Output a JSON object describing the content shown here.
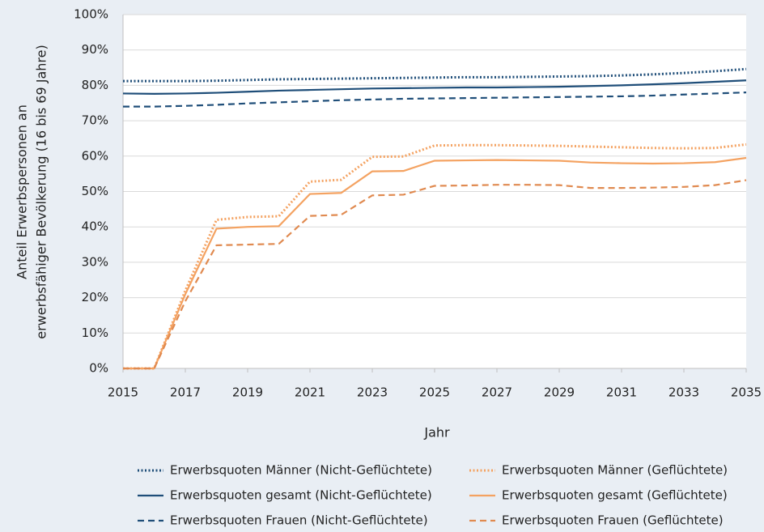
{
  "chart_data": {
    "type": "line",
    "x_label": "Jahr",
    "y_label": [
      "Anteil Erwerbspersonen an",
      "erwerbsfähiger Bevölkerung (16 bis 69 Jahre)"
    ],
    "x": [
      2015,
      2016,
      2017,
      2018,
      2019,
      2020,
      2021,
      2022,
      2023,
      2024,
      2025,
      2026,
      2027,
      2028,
      2029,
      2030,
      2031,
      2032,
      2033,
      2034,
      2035
    ],
    "xlim": [
      2015,
      2035
    ],
    "xticks": [
      2015,
      2017,
      2019,
      2021,
      2023,
      2025,
      2027,
      2029,
      2031,
      2033,
      2035
    ],
    "ylim": [
      0,
      100
    ],
    "yticks": [
      {
        "value": 0,
        "label": "0%"
      },
      {
        "value": 10,
        "label": "10%"
      },
      {
        "value": 20,
        "label": "20%"
      },
      {
        "value": 30,
        "label": "30%"
      },
      {
        "value": 40,
        "label": "40%"
      },
      {
        "value": 50,
        "label": "50%"
      },
      {
        "value": 60,
        "label": "60%"
      },
      {
        "value": 70,
        "label": "70%"
      },
      {
        "value": 80,
        "label": "80%"
      },
      {
        "value": 90,
        "label": "90%"
      },
      {
        "value": 100,
        "label": "100%"
      }
    ],
    "grid": true,
    "series": [
      {
        "name": "Erwerbsquoten Männer (Nicht-Geflüchtete)",
        "color": "#1f4e79",
        "dash": "dotted",
        "values": [
          81.2,
          81.2,
          81.2,
          81.3,
          81.5,
          81.7,
          81.8,
          81.9,
          82.0,
          82.1,
          82.2,
          82.3,
          82.3,
          82.4,
          82.5,
          82.6,
          82.8,
          83.1,
          83.5,
          84.0,
          84.6
        ]
      },
      {
        "name": "Erwerbsquoten Männer (Geflüchtete)",
        "color": "#f4a261",
        "dash": "dotted",
        "values": [
          0,
          0,
          22,
          42,
          42.8,
          43,
          52.8,
          53.3,
          59.8,
          59.9,
          63,
          63.1,
          63.1,
          63,
          62.9,
          62.7,
          62.5,
          62.3,
          62.2,
          62.3,
          63.3
        ]
      },
      {
        "name": "Erwerbsquoten gesamt (Nicht-Geflüchtete)",
        "color": "#1f4e79",
        "dash": "solid",
        "values": [
          77.7,
          77.6,
          77.7,
          77.9,
          78.2,
          78.5,
          78.7,
          78.9,
          79.1,
          79.2,
          79.3,
          79.4,
          79.4,
          79.5,
          79.6,
          79.8,
          80.0,
          80.3,
          80.6,
          81.0,
          81.4
        ]
      },
      {
        "name": "Erwerbsquoten gesamt (Geflüchtete)",
        "color": "#f4a261",
        "dash": "solid",
        "values": [
          0,
          0,
          21,
          39.5,
          40,
          40.2,
          49.3,
          49.6,
          55.7,
          55.8,
          58.7,
          58.8,
          58.9,
          58.8,
          58.7,
          58.2,
          58.0,
          57.9,
          58.0,
          58.3,
          59.5
        ]
      },
      {
        "name": "Erwerbsquoten Frauen (Nicht-Geflüchtete)",
        "color": "#1f4e79",
        "dash": "dashed",
        "values": [
          74.0,
          74.0,
          74.2,
          74.5,
          74.9,
          75.2,
          75.5,
          75.8,
          76.0,
          76.2,
          76.3,
          76.4,
          76.5,
          76.6,
          76.7,
          76.8,
          76.9,
          77.1,
          77.4,
          77.7,
          78.0
        ]
      },
      {
        "name": "Erwerbsquoten Frauen (Geflüchtete)",
        "color": "#e08a50",
        "dash": "dashed",
        "values": [
          0,
          0,
          19,
          34.8,
          35,
          35.2,
          43.1,
          43.4,
          48.9,
          49.1,
          51.6,
          51.7,
          51.9,
          51.9,
          51.8,
          51.0,
          51.0,
          51.1,
          51.3,
          51.8,
          53.2
        ]
      }
    ]
  }
}
